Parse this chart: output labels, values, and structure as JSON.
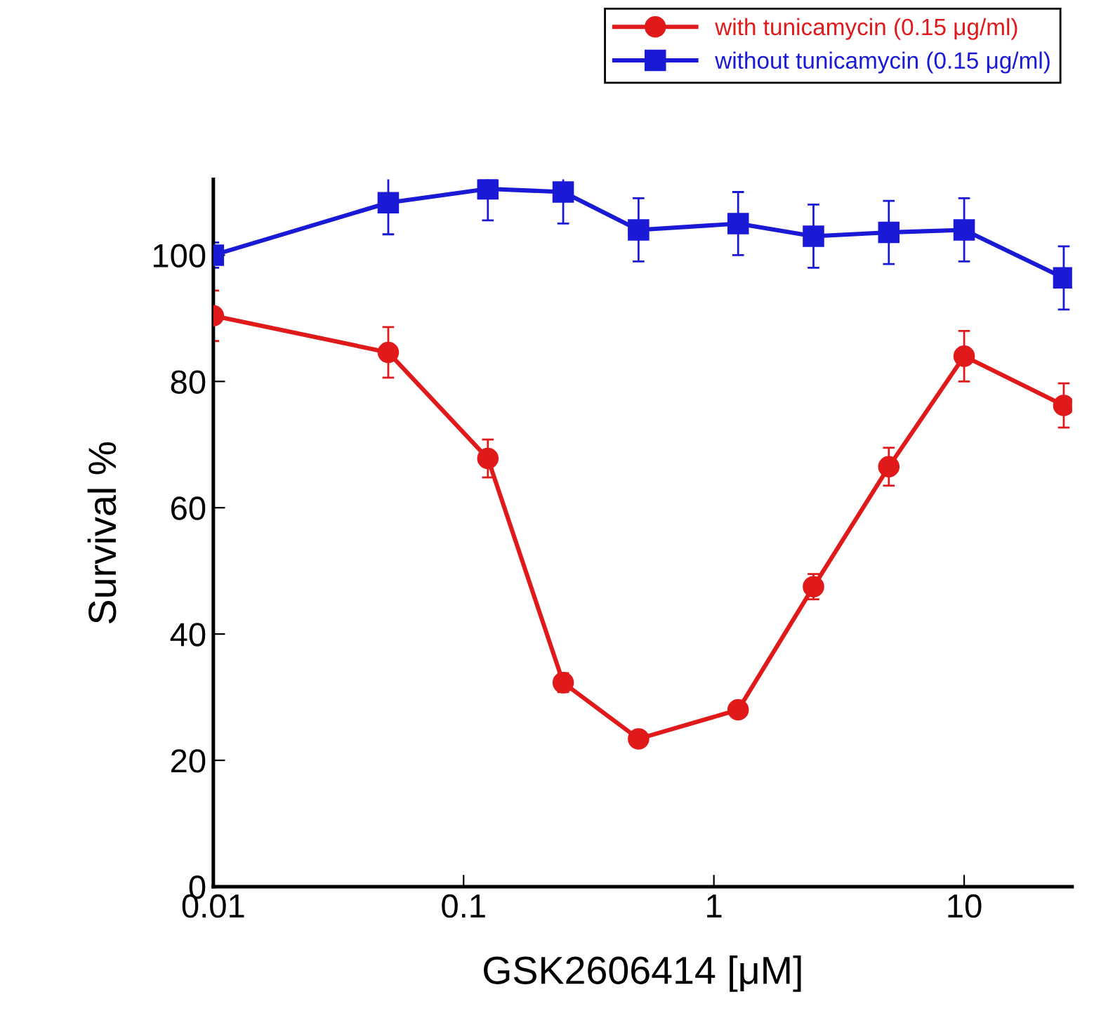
{
  "chart_data": {
    "type": "line",
    "xlabel": "GSK2606414 [μM]",
    "ylabel": "Survival %",
    "log": "x",
    "x": [
      0.01,
      0.05,
      0.125,
      0.25,
      0.5,
      1.25,
      2.5,
      5,
      10,
      25
    ],
    "series": [
      {
        "name": "with tunicamycin (0.15 μg/ml)",
        "color": "#e01a1a",
        "marker": "circle",
        "values": [
          90.4,
          84.6,
          67.8,
          32.3,
          23.4,
          28,
          47.5,
          66.5,
          84,
          76.2
        ],
        "errors": [
          4,
          4,
          3,
          1.5,
          1,
          1,
          2,
          3,
          4,
          3.5
        ]
      },
      {
        "name": "without tunicamycin (0.15 μg/ml)",
        "color": "#1a1ad6",
        "marker": "square",
        "values": [
          100,
          108.3,
          110.5,
          110,
          104,
          105,
          103,
          103.6,
          104,
          96.4
        ],
        "errors": [
          2,
          5,
          5,
          5,
          5,
          5,
          5,
          5,
          5,
          5
        ]
      }
    ],
    "xlim": [
      0.01,
      27
    ],
    "xticks": [
      0.01,
      0.1,
      1,
      10
    ],
    "ylim": [
      0,
      112
    ],
    "yticks": [
      0,
      20,
      40,
      60,
      80,
      100
    ],
    "grid": false,
    "legend": "top right",
    "line_style": "solid"
  }
}
